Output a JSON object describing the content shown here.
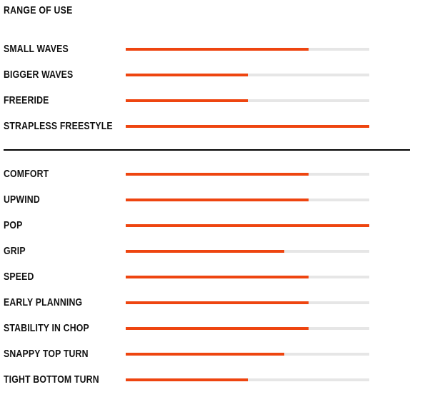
{
  "title": "RANGE OF USE",
  "colors": {
    "fill": "#ee4510",
    "track": "#e6e6e6",
    "text": "#111111",
    "divider": "#000000"
  },
  "groups": [
    {
      "rows": [
        {
          "label": "SMALL WAVES",
          "value": 0.75
        },
        {
          "label": "BIGGER WAVES",
          "value": 0.5
        },
        {
          "label": "FREERIDE",
          "value": 0.5
        },
        {
          "label": "STRAPLESS FREESTYLE",
          "value": 1.0
        }
      ]
    },
    {
      "rows": [
        {
          "label": "COMFORT",
          "value": 0.75
        },
        {
          "label": "UPWIND",
          "value": 0.75
        },
        {
          "label": "POP",
          "value": 1.0
        },
        {
          "label": "GRIP",
          "value": 0.65
        },
        {
          "label": "SPEED",
          "value": 0.75
        },
        {
          "label": "EARLY PLANNING",
          "value": 0.75
        },
        {
          "label": "STABILITY IN CHOP",
          "value": 0.75
        },
        {
          "label": "SNAPPY TOP TURN",
          "value": 0.65
        },
        {
          "label": "TIGHT BOTTOM TURN",
          "value": 0.5
        }
      ]
    }
  ]
}
